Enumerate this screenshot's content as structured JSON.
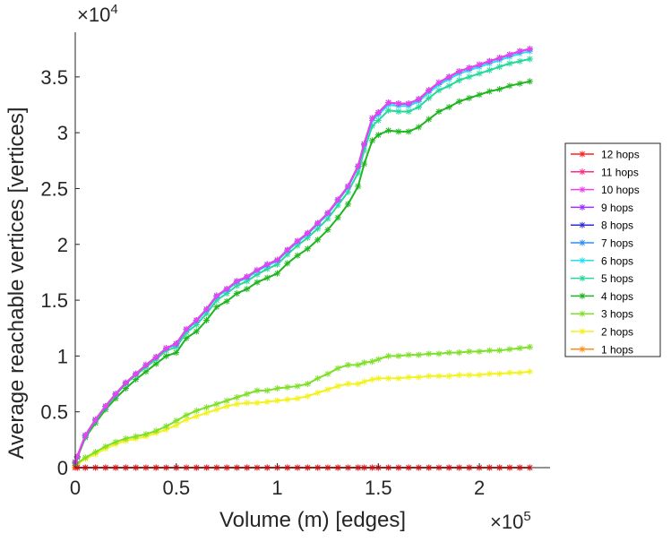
{
  "chart_data": {
    "type": "line",
    "title": "",
    "xlabel": "Volume (m) [edges]",
    "ylabel": "Average reachable vertices [vertices]",
    "x_multiplier": "×10",
    "x_exponent": "5",
    "y_multiplier": "×10",
    "y_exponent": "4",
    "xlim": [
      0,
      2.35
    ],
    "ylim": [
      0,
      3.9
    ],
    "x_ticks": [
      0,
      0.5,
      1,
      1.5,
      2
    ],
    "x_tick_labels": [
      "0",
      "0.5",
      "1",
      "1.5",
      "2"
    ],
    "y_ticks": [
      0,
      0.5,
      1,
      1.5,
      2,
      2.5,
      3,
      3.5
    ],
    "y_tick_labels": [
      "0",
      "0.5",
      "1",
      "1.5",
      "2",
      "2.5",
      "3",
      "3.5"
    ],
    "grid": false,
    "legend_position": "right",
    "x": [
      0,
      0.01,
      0.05,
      0.1,
      0.15,
      0.2,
      0.25,
      0.3,
      0.35,
      0.4,
      0.45,
      0.5,
      0.55,
      0.6,
      0.65,
      0.7,
      0.75,
      0.8,
      0.85,
      0.9,
      0.95,
      1.0,
      1.05,
      1.1,
      1.15,
      1.2,
      1.25,
      1.3,
      1.35,
      1.4,
      1.43,
      1.47,
      1.5,
      1.55,
      1.6,
      1.65,
      1.7,
      1.75,
      1.8,
      1.85,
      1.9,
      1.95,
      2.0,
      2.05,
      2.1,
      2.15,
      2.2,
      2.25
    ],
    "series": [
      {
        "name": "12 hops",
        "color": "#ff2020",
        "values": [
          0,
          0,
          0,
          0,
          0,
          0,
          0,
          0,
          0,
          0,
          0,
          0,
          0,
          0,
          0,
          0,
          0,
          0,
          0,
          0,
          0,
          0,
          0,
          0,
          0,
          0,
          0,
          0,
          0,
          0,
          0,
          0,
          0,
          0,
          0,
          0,
          0,
          0,
          0,
          0,
          0,
          0,
          0,
          0,
          0,
          0,
          0,
          0
        ]
      },
      {
        "name": "11 hops",
        "color": "#ff2a8a",
        "values": [
          0,
          0,
          0,
          0,
          0,
          0,
          0,
          0,
          0,
          0,
          0,
          0,
          0,
          0,
          0,
          0,
          0,
          0,
          0,
          0,
          0,
          0,
          0,
          0,
          0,
          0,
          0,
          0,
          0,
          0,
          0,
          0,
          0,
          0,
          0,
          0,
          0,
          0,
          0,
          0,
          0,
          0,
          0,
          0,
          0,
          0,
          0,
          0
        ]
      },
      {
        "name": "10 hops",
        "color": "#f040f0",
        "values": [
          0.05,
          0.1,
          0.29,
          0.43,
          0.55,
          0.66,
          0.76,
          0.84,
          0.92,
          0.99,
          1.07,
          1.11,
          1.24,
          1.32,
          1.42,
          1.54,
          1.6,
          1.67,
          1.71,
          1.77,
          1.82,
          1.86,
          1.95,
          2.03,
          2.1,
          2.19,
          2.28,
          2.4,
          2.52,
          2.7,
          2.9,
          3.13,
          3.18,
          3.27,
          3.26,
          3.26,
          3.3,
          3.38,
          3.45,
          3.5,
          3.55,
          3.58,
          3.61,
          3.64,
          3.67,
          3.7,
          3.73,
          3.75
        ]
      },
      {
        "name": "9 hops",
        "color": "#9b30ff",
        "values": [
          0.05,
          0.1,
          0.29,
          0.43,
          0.55,
          0.66,
          0.76,
          0.84,
          0.92,
          0.99,
          1.07,
          1.11,
          1.24,
          1.32,
          1.42,
          1.54,
          1.6,
          1.67,
          1.71,
          1.77,
          1.82,
          1.86,
          1.95,
          2.03,
          2.1,
          2.19,
          2.28,
          2.4,
          2.52,
          2.7,
          2.9,
          3.13,
          3.18,
          3.27,
          3.26,
          3.26,
          3.3,
          3.38,
          3.45,
          3.5,
          3.55,
          3.58,
          3.61,
          3.64,
          3.67,
          3.7,
          3.73,
          3.75
        ]
      },
      {
        "name": "8 hops",
        "color": "#2b2bd9",
        "values": [
          0.05,
          0.1,
          0.29,
          0.43,
          0.55,
          0.66,
          0.76,
          0.84,
          0.92,
          0.99,
          1.07,
          1.11,
          1.24,
          1.32,
          1.42,
          1.54,
          1.6,
          1.67,
          1.71,
          1.77,
          1.82,
          1.86,
          1.95,
          2.03,
          2.1,
          2.19,
          2.28,
          2.4,
          2.52,
          2.7,
          2.9,
          3.13,
          3.18,
          3.27,
          3.26,
          3.26,
          3.3,
          3.38,
          3.45,
          3.5,
          3.55,
          3.58,
          3.61,
          3.64,
          3.67,
          3.7,
          3.73,
          3.75
        ]
      },
      {
        "name": "7 hops",
        "color": "#2f8ef0",
        "values": [
          0.05,
          0.1,
          0.29,
          0.43,
          0.55,
          0.66,
          0.76,
          0.84,
          0.92,
          0.99,
          1.07,
          1.11,
          1.24,
          1.32,
          1.42,
          1.54,
          1.6,
          1.67,
          1.71,
          1.77,
          1.82,
          1.86,
          1.95,
          2.03,
          2.1,
          2.19,
          2.28,
          2.4,
          2.52,
          2.7,
          2.9,
          3.13,
          3.18,
          3.27,
          3.26,
          3.26,
          3.3,
          3.38,
          3.45,
          3.5,
          3.55,
          3.58,
          3.61,
          3.64,
          3.67,
          3.7,
          3.73,
          3.75
        ]
      },
      {
        "name": "6 hops",
        "color": "#1ee0f0",
        "values": [
          0.05,
          0.1,
          0.29,
          0.43,
          0.55,
          0.66,
          0.76,
          0.84,
          0.92,
          0.99,
          1.07,
          1.1,
          1.23,
          1.31,
          1.41,
          1.53,
          1.59,
          1.66,
          1.7,
          1.76,
          1.81,
          1.85,
          1.94,
          2.02,
          2.09,
          2.18,
          2.27,
          2.39,
          2.51,
          2.69,
          2.89,
          3.11,
          3.16,
          3.25,
          3.24,
          3.24,
          3.28,
          3.36,
          3.43,
          3.48,
          3.53,
          3.56,
          3.59,
          3.62,
          3.65,
          3.68,
          3.71,
          3.73
        ]
      },
      {
        "name": "5 hops",
        "color": "#25d99a",
        "values": [
          0.05,
          0.1,
          0.28,
          0.42,
          0.54,
          0.65,
          0.75,
          0.83,
          0.9,
          0.97,
          1.05,
          1.08,
          1.21,
          1.28,
          1.38,
          1.5,
          1.56,
          1.63,
          1.67,
          1.73,
          1.78,
          1.82,
          1.91,
          1.99,
          2.06,
          2.14,
          2.23,
          2.35,
          2.47,
          2.64,
          2.84,
          3.06,
          3.11,
          3.2,
          3.19,
          3.19,
          3.23,
          3.31,
          3.38,
          3.42,
          3.47,
          3.5,
          3.53,
          3.56,
          3.59,
          3.62,
          3.64,
          3.66
        ]
      },
      {
        "name": "4 hops",
        "color": "#1fb51f",
        "values": [
          0.04,
          0.09,
          0.27,
          0.4,
          0.52,
          0.62,
          0.71,
          0.79,
          0.86,
          0.93,
          1.0,
          1.03,
          1.16,
          1.22,
          1.32,
          1.44,
          1.49,
          1.56,
          1.6,
          1.66,
          1.7,
          1.74,
          1.83,
          1.9,
          1.96,
          2.04,
          2.13,
          2.24,
          2.36,
          2.52,
          2.72,
          2.93,
          2.98,
          3.02,
          3.01,
          3.01,
          3.05,
          3.12,
          3.19,
          3.23,
          3.28,
          3.31,
          3.34,
          3.37,
          3.39,
          3.42,
          3.44,
          3.46
        ]
      },
      {
        "name": "3 hops",
        "color": "#7ee028",
        "values": [
          0.02,
          0.04,
          0.09,
          0.14,
          0.19,
          0.23,
          0.26,
          0.28,
          0.3,
          0.33,
          0.37,
          0.42,
          0.47,
          0.51,
          0.54,
          0.57,
          0.6,
          0.63,
          0.66,
          0.69,
          0.69,
          0.71,
          0.72,
          0.73,
          0.75,
          0.8,
          0.84,
          0.89,
          0.92,
          0.92,
          0.94,
          0.95,
          0.97,
          1.0,
          1.0,
          1.01,
          1.01,
          1.02,
          1.02,
          1.03,
          1.03,
          1.04,
          1.04,
          1.05,
          1.05,
          1.06,
          1.07,
          1.08
        ]
      },
      {
        "name": "2 hops",
        "color": "#f2f21f",
        "values": [
          0.01,
          0.03,
          0.08,
          0.12,
          0.17,
          0.21,
          0.24,
          0.26,
          0.28,
          0.31,
          0.34,
          0.38,
          0.43,
          0.46,
          0.49,
          0.52,
          0.55,
          0.57,
          0.58,
          0.58,
          0.59,
          0.6,
          0.61,
          0.62,
          0.64,
          0.67,
          0.7,
          0.73,
          0.75,
          0.75,
          0.77,
          0.79,
          0.8,
          0.8,
          0.8,
          0.81,
          0.81,
          0.82,
          0.82,
          0.82,
          0.83,
          0.83,
          0.83,
          0.84,
          0.84,
          0.85,
          0.85,
          0.86
        ]
      },
      {
        "name": "1 hops",
        "color": "#ff8c1a",
        "values": [
          0,
          0,
          0,
          0,
          0,
          0,
          0,
          0,
          0,
          0,
          0,
          0,
          0,
          0,
          0,
          0,
          0,
          0,
          0,
          0,
          0,
          0,
          0,
          0,
          0,
          0,
          0,
          0,
          0,
          0,
          0,
          0,
          0,
          0,
          0,
          0,
          0,
          0,
          0,
          0,
          0,
          0,
          0,
          0,
          0,
          0,
          0,
          0
        ]
      }
    ]
  }
}
